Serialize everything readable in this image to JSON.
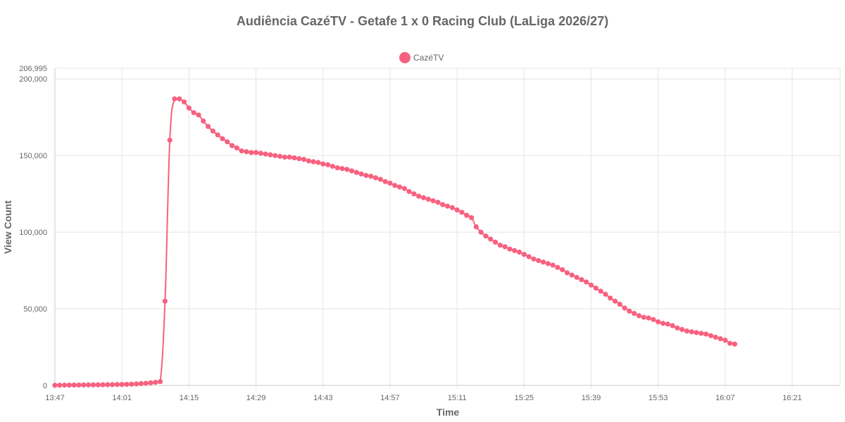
{
  "colors": {
    "series": "#f7617f",
    "grid": "#e5e5e5",
    "text": "#666666"
  },
  "chart_data": {
    "type": "line",
    "title": "Audiência CazéTV - Getafe 1 x 0 Racing Club (LaLiga 2026/27)",
    "xlabel": "Time",
    "ylabel": "View Count",
    "legend": {
      "position": "top",
      "entries": [
        "CazéTV"
      ]
    },
    "grid": true,
    "x_unit": "minute",
    "x_ticks": [
      "13:47",
      "14:01",
      "14:15",
      "14:29",
      "14:43",
      "14:57",
      "15:11",
      "15:25",
      "15:39",
      "15:53",
      "16:07",
      "16:21"
    ],
    "x_range": [
      "13:47",
      "16:31"
    ],
    "y_ticks": [
      0,
      50000,
      100000,
      150000,
      200000
    ],
    "y_tick_labels": [
      "0",
      "50,000",
      "100,000",
      "150,000",
      "200,000"
    ],
    "y_max_label": "206,995",
    "ylim": [
      0,
      206995
    ],
    "series": [
      {
        "name": "CazéTV",
        "color": "#f7617f",
        "start_time": "13:47",
        "values": [
          100,
          150,
          200,
          200,
          250,
          250,
          300,
          350,
          350,
          400,
          450,
          500,
          550,
          600,
          650,
          700,
          800,
          1000,
          1200,
          1400,
          1700,
          2000,
          2500,
          55000,
          160000,
          187000,
          187000,
          185000,
          181000,
          178000,
          176500,
          172500,
          169000,
          166000,
          163500,
          161000,
          159000,
          156500,
          155000,
          153000,
          152500,
          152000,
          152000,
          151500,
          151000,
          150500,
          150000,
          149500,
          149000,
          149000,
          148500,
          148000,
          147500,
          146500,
          146000,
          145500,
          144500,
          144000,
          143000,
          142000,
          141500,
          141000,
          140000,
          139000,
          138000,
          137000,
          136500,
          135500,
          134500,
          133000,
          132000,
          130500,
          129500,
          128500,
          126500,
          125000,
          123500,
          122500,
          121500,
          120500,
          119500,
          118000,
          117000,
          116000,
          114500,
          113000,
          111000,
          109500,
          103500,
          100000,
          97500,
          95500,
          93500,
          91500,
          90500,
          89000,
          88000,
          87000,
          85500,
          84000,
          82500,
          81500,
          80500,
          79500,
          78500,
          77000,
          75500,
          73500,
          72000,
          70500,
          69000,
          67500,
          65500,
          63500,
          61500,
          59500,
          57000,
          55000,
          53000,
          50500,
          48500,
          47000,
          45500,
          44500,
          44000,
          43000,
          41500,
          40500,
          40000,
          39000,
          37500,
          36500,
          35500,
          35000,
          34500,
          34000,
          33500,
          32500,
          31500,
          30500,
          29500,
          27500,
          27000
        ]
      }
    ]
  }
}
